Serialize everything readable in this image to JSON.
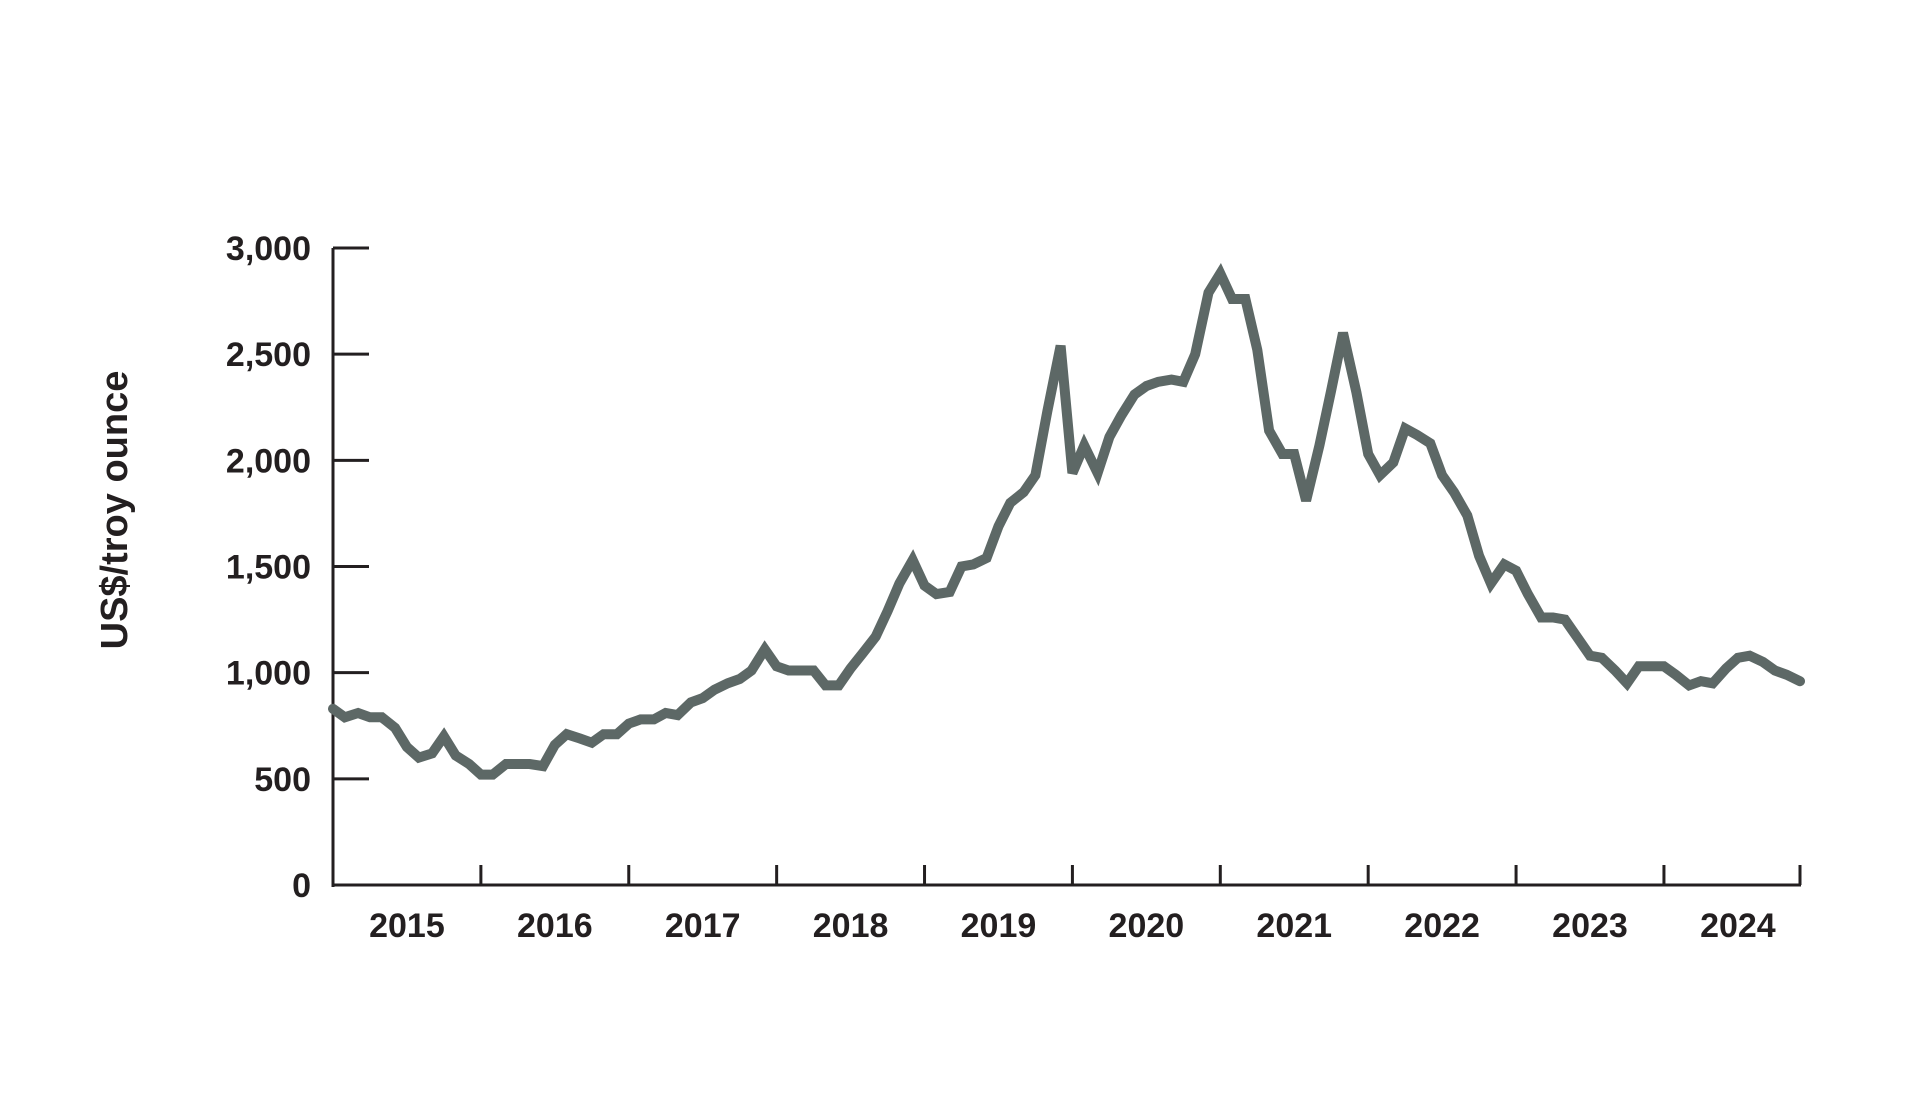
{
  "chart_data": {
    "type": "line",
    "title": "",
    "xlabel": "",
    "ylabel": "US$/troy ounce",
    "ylim": [
      0,
      3000
    ],
    "xlim": [
      2015.0,
      2024.92
    ],
    "grid": false,
    "legend": "none",
    "colors": {
      "line": "#5d6866",
      "axis": "#231f20",
      "text": "#231f20"
    },
    "y_ticks": [
      {
        "value": 0,
        "label": "0"
      },
      {
        "value": 500,
        "label": "500"
      },
      {
        "value": 1000,
        "label": "1,000"
      },
      {
        "value": 1500,
        "label": "1,500"
      },
      {
        "value": 2000,
        "label": "2,000"
      },
      {
        "value": 2500,
        "label": "2,500"
      },
      {
        "value": 3000,
        "label": "3,000"
      }
    ],
    "x_tick_positions": [
      2015,
      2016,
      2017,
      2018,
      2019,
      2020,
      2021,
      2022,
      2023,
      2024,
      2024.92
    ],
    "x_labels": [
      {
        "value": 2015.5,
        "label": "2015"
      },
      {
        "value": 2016.5,
        "label": "2016"
      },
      {
        "value": 2017.5,
        "label": "2017"
      },
      {
        "value": 2018.5,
        "label": "2018"
      },
      {
        "value": 2019.5,
        "label": "2019"
      },
      {
        "value": 2020.5,
        "label": "2020"
      },
      {
        "value": 2021.5,
        "label": "2021"
      },
      {
        "value": 2022.5,
        "label": "2022"
      },
      {
        "value": 2023.5,
        "label": "2023"
      },
      {
        "value": 2024.5,
        "label": "2024"
      }
    ],
    "series": [
      {
        "x": [
          2015.0,
          2015.08,
          2015.17,
          2015.25,
          2015.33,
          2015.42,
          2015.5,
          2015.58,
          2015.67,
          2015.75,
          2015.83,
          2015.92,
          2016.0,
          2016.08,
          2016.17,
          2016.25,
          2016.33,
          2016.42,
          2016.5,
          2016.58,
          2016.67,
          2016.75,
          2016.83,
          2016.92,
          2017.0,
          2017.08,
          2017.17,
          2017.25,
          2017.33,
          2017.42,
          2017.5,
          2017.58,
          2017.67,
          2017.75,
          2017.83,
          2017.92,
          2018.0,
          2018.08,
          2018.17,
          2018.25,
          2018.33,
          2018.42,
          2018.5,
          2018.58,
          2018.67,
          2018.75,
          2018.83,
          2018.92,
          2019.0,
          2019.08,
          2019.17,
          2019.25,
          2019.33,
          2019.42,
          2019.5,
          2019.58,
          2019.67,
          2019.75,
          2019.83,
          2019.92,
          2020.0,
          2020.08,
          2020.17,
          2020.25,
          2020.33,
          2020.42,
          2020.5,
          2020.58,
          2020.67,
          2020.75,
          2020.83,
          2020.92,
          2021.0,
          2021.08,
          2021.17,
          2021.25,
          2021.33,
          2021.42,
          2021.5,
          2021.58,
          2021.67,
          2021.75,
          2021.83,
          2021.92,
          2022.0,
          2022.08,
          2022.17,
          2022.25,
          2022.33,
          2022.42,
          2022.5,
          2022.58,
          2022.67,
          2022.75,
          2022.83,
          2022.92,
          2023.0,
          2023.08,
          2023.17,
          2023.25,
          2023.33,
          2023.42,
          2023.5,
          2023.58,
          2023.67,
          2023.75,
          2023.83,
          2023.92,
          2024.0,
          2024.08,
          2024.17,
          2024.25,
          2024.33,
          2024.42,
          2024.5,
          2024.58,
          2024.67,
          2024.75,
          2024.83,
          2024.92
        ],
        "y": [
          830,
          790,
          810,
          790,
          790,
          740,
          650,
          600,
          620,
          700,
          610,
          570,
          520,
          520,
          570,
          570,
          570,
          560,
          660,
          710,
          690,
          670,
          710,
          710,
          760,
          780,
          780,
          810,
          800,
          860,
          880,
          920,
          950,
          970,
          1010,
          1110,
          1030,
          1010,
          1010,
          1010,
          940,
          940,
          1020,
          1090,
          1170,
          1290,
          1420,
          1530,
          1410,
          1370,
          1380,
          1500,
          1510,
          1540,
          1690,
          1800,
          1850,
          1930,
          2230,
          2540,
          1940,
          2070,
          1940,
          2110,
          2210,
          2310,
          2350,
          2370,
          2380,
          2370,
          2500,
          2790,
          2880,
          2760,
          2760,
          2520,
          2140,
          2030,
          2030,
          1810,
          2070,
          2330,
          2600,
          2320,
          2030,
          1930,
          1990,
          2150,
          2120,
          2080,
          1930,
          1850,
          1740,
          1550,
          1420,
          1510,
          1480,
          1370,
          1260,
          1260,
          1250,
          1160,
          1080,
          1070,
          1010,
          950,
          1030,
          1030,
          1030,
          990,
          940,
          960,
          950,
          1020,
          1070,
          1080,
          1050,
          1010,
          990,
          960
        ]
      }
    ]
  }
}
